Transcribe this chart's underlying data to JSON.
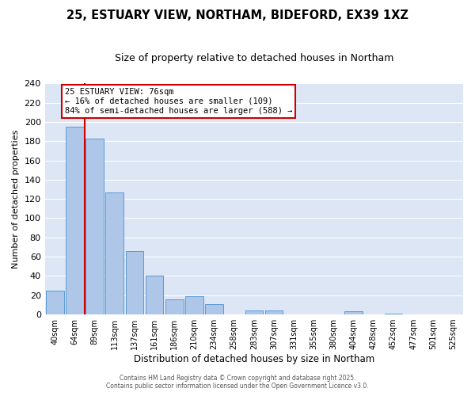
{
  "title": "25, ESTUARY VIEW, NORTHAM, BIDEFORD, EX39 1XZ",
  "subtitle": "Size of property relative to detached houses in Northam",
  "xlabel": "Distribution of detached houses by size in Northam",
  "ylabel": "Number of detached properties",
  "bar_labels": [
    "40sqm",
    "64sqm",
    "89sqm",
    "113sqm",
    "137sqm",
    "161sqm",
    "186sqm",
    "210sqm",
    "234sqm",
    "258sqm",
    "283sqm",
    "307sqm",
    "331sqm",
    "355sqm",
    "380sqm",
    "404sqm",
    "428sqm",
    "452sqm",
    "477sqm",
    "501sqm",
    "525sqm"
  ],
  "bar_values": [
    25,
    195,
    183,
    127,
    66,
    40,
    16,
    19,
    11,
    0,
    4,
    4,
    0,
    0,
    0,
    3,
    0,
    1,
    0,
    0,
    0
  ],
  "bar_color": "#aec6e8",
  "bar_edge_color": "#5b9bd5",
  "plot_bg_color": "#dce6f5",
  "fig_bg_color": "#ffffff",
  "grid_color": "#ffffff",
  "vline_x": 1.5,
  "vline_color": "#cc0000",
  "annotation_title": "25 ESTUARY VIEW: 76sqm",
  "annotation_line1": "← 16% of detached houses are smaller (109)",
  "annotation_line2": "84% of semi-detached houses are larger (588) →",
  "annotation_box_color": "#ffffff",
  "annotation_border_color": "#cc0000",
  "ylim": [
    0,
    240
  ],
  "yticks": [
    0,
    20,
    40,
    60,
    80,
    100,
    120,
    140,
    160,
    180,
    200,
    220,
    240
  ],
  "footer1": "Contains HM Land Registry data © Crown copyright and database right 2025.",
  "footer2": "Contains public sector information licensed under the Open Government Licence v3.0."
}
